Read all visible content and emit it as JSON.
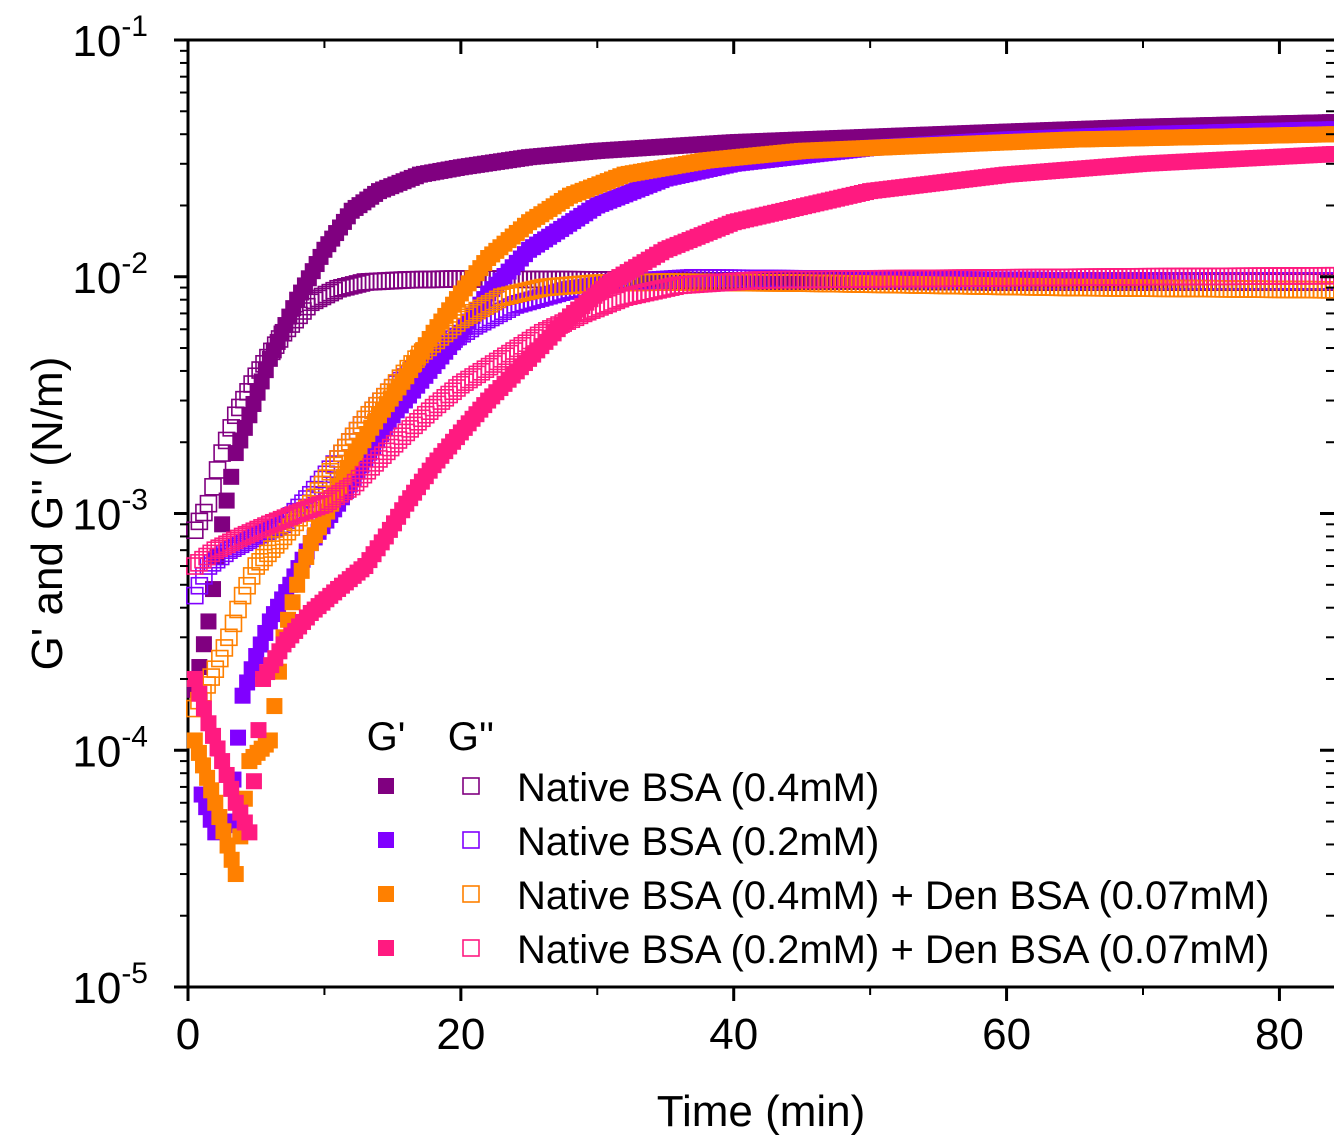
{
  "chart_data": {
    "type": "scatter",
    "title": "",
    "xlabel": "Time (min)",
    "ylabel": "G' and G'' (N/m)",
    "xlim": [
      0,
      84
    ],
    "ylim": [
      1e-05,
      0.1
    ],
    "yscale": "log",
    "grid": false,
    "legend_position": "bottom-right",
    "legend_headers": [
      "G'",
      "G''"
    ],
    "x_ticks": [
      0,
      20,
      40,
      60,
      80
    ],
    "x_tick_labels": [
      "0",
      "20",
      "40",
      "60",
      "80"
    ],
    "y_ticks": [
      {
        "value": 1e-05,
        "base": "10",
        "exp": "-5"
      },
      {
        "value": 0.0001,
        "base": "10",
        "exp": "-4"
      },
      {
        "value": 0.001,
        "base": "10",
        "exp": "-3"
      },
      {
        "value": 0.01,
        "base": "10",
        "exp": "-2"
      },
      {
        "value": 0.1,
        "base": "10",
        "exp": "-1"
      }
    ],
    "series": [
      {
        "name": "Native BSA (0.4mM)",
        "color": "#800080",
        "gprime": [
          [
            0.5,
            0.00018
          ],
          [
            1.5,
            0.00035
          ],
          [
            2.5,
            0.0009
          ],
          [
            3.5,
            0.0018
          ],
          [
            4.5,
            0.0026
          ],
          [
            6,
            0.0045
          ],
          [
            8,
            0.008
          ],
          [
            10,
            0.013
          ],
          [
            12,
            0.019
          ],
          [
            14,
            0.023
          ],
          [
            17,
            0.027
          ],
          [
            20,
            0.029
          ],
          [
            25,
            0.032
          ],
          [
            30,
            0.034
          ],
          [
            40,
            0.037
          ],
          [
            50,
            0.039
          ],
          [
            60,
            0.041
          ],
          [
            70,
            0.043
          ],
          [
            84,
            0.045
          ]
        ],
        "gdoubleprime": [
          [
            0.5,
            0.00085
          ],
          [
            1.5,
            0.0011
          ],
          [
            2.5,
            0.0018
          ],
          [
            3.5,
            0.0026
          ],
          [
            5,
            0.0038
          ],
          [
            7,
            0.0058
          ],
          [
            9,
            0.0078
          ],
          [
            11,
            0.0089
          ],
          [
            13,
            0.0095
          ],
          [
            16,
            0.0097
          ],
          [
            20,
            0.0098
          ],
          [
            30,
            0.0097
          ],
          [
            40,
            0.0096
          ],
          [
            50,
            0.0096
          ],
          [
            60,
            0.0095
          ],
          [
            70,
            0.0095
          ],
          [
            84,
            0.0095
          ]
        ]
      },
      {
        "name": "Native BSA (0.2mM)",
        "color": "#8000FF",
        "gprime": [
          [
            1,
            6.5e-05
          ],
          [
            2,
            4.5e-05
          ],
          [
            3,
            5e-05
          ],
          [
            4,
            0.00017
          ],
          [
            5,
            0.00025
          ],
          [
            6,
            0.00035
          ],
          [
            7.5,
            0.0005
          ],
          [
            9,
            0.00075
          ],
          [
            11,
            0.0011
          ],
          [
            13,
            0.0017
          ],
          [
            15,
            0.0026
          ],
          [
            18,
            0.0042
          ],
          [
            20,
            0.0058
          ],
          [
            22,
            0.0085
          ],
          [
            25,
            0.013
          ],
          [
            30,
            0.02
          ],
          [
            35,
            0.026
          ],
          [
            40,
            0.03
          ],
          [
            50,
            0.035
          ],
          [
            60,
            0.038
          ],
          [
            70,
            0.04
          ],
          [
            84,
            0.042
          ]
        ],
        "gdoubleprime": [
          [
            0.5,
            0.00045
          ],
          [
            1.5,
            0.0006
          ],
          [
            3,
            0.0007
          ],
          [
            5,
            0.0008
          ],
          [
            7,
            0.0009
          ],
          [
            9,
            0.0012
          ],
          [
            11,
            0.0017
          ],
          [
            13,
            0.0025
          ],
          [
            15,
            0.0034
          ],
          [
            18,
            0.0048
          ],
          [
            21,
            0.0062
          ],
          [
            24,
            0.0076
          ],
          [
            28,
            0.0088
          ],
          [
            32,
            0.0095
          ],
          [
            37,
            0.0099
          ],
          [
            45,
            0.0098
          ],
          [
            55,
            0.0097
          ],
          [
            65,
            0.0096
          ],
          [
            75,
            0.0096
          ],
          [
            84,
            0.0096
          ]
        ]
      },
      {
        "name": "Native BSA (0.4mM) + Den BSA (0.07mM)",
        "color": "#FF8000",
        "gprime": [
          [
            0.5,
            0.00011
          ],
          [
            2,
            6e-05
          ],
          [
            3.5,
            3e-05
          ],
          [
            4.5,
            9e-05
          ],
          [
            6,
            0.00011
          ],
          [
            7,
            0.0003
          ],
          [
            8,
            0.0005
          ],
          [
            9,
            0.00075
          ],
          [
            10.5,
            0.0011
          ],
          [
            12,
            0.0017
          ],
          [
            14,
            0.0026
          ],
          [
            16,
            0.0038
          ],
          [
            18,
            0.0058
          ],
          [
            20,
            0.0085
          ],
          [
            22,
            0.012
          ],
          [
            25,
            0.017
          ],
          [
            28,
            0.022
          ],
          [
            32,
            0.027
          ],
          [
            38,
            0.031
          ],
          [
            45,
            0.034
          ],
          [
            55,
            0.036
          ],
          [
            65,
            0.038
          ],
          [
            75,
            0.039
          ],
          [
            84,
            0.04
          ]
        ],
        "gdoubleprime": [
          [
            0.5,
            0.00015
          ],
          [
            2,
            0.00022
          ],
          [
            3,
            0.0003
          ],
          [
            4,
            0.00045
          ],
          [
            5,
            0.0006
          ],
          [
            7,
            0.0008
          ],
          [
            9,
            0.0011
          ],
          [
            11,
            0.0017
          ],
          [
            13,
            0.0025
          ],
          [
            15,
            0.0034
          ],
          [
            17,
            0.0047
          ],
          [
            20,
            0.0066
          ],
          [
            23,
            0.0082
          ],
          [
            26,
            0.009
          ],
          [
            30,
            0.0094
          ],
          [
            35,
            0.0095
          ],
          [
            45,
            0.0094
          ],
          [
            55,
            0.0092
          ],
          [
            65,
            0.009
          ],
          [
            75,
            0.0089
          ],
          [
            84,
            0.0088
          ]
        ]
      },
      {
        "name": "Native BSA (0.2mM) + Den BSA (0.07mM)",
        "color": "#FF1A80",
        "gprime": [
          [
            0.5,
            0.0002
          ],
          [
            1.5,
            0.00013
          ],
          [
            2.5,
            9e-05
          ],
          [
            3.5,
            6e-05
          ],
          [
            4.5,
            4.5e-05
          ],
          [
            5.5,
            0.0002
          ],
          [
            7,
            0.00028
          ],
          [
            9,
            0.00038
          ],
          [
            11,
            0.00048
          ],
          [
            13,
            0.0006
          ],
          [
            14.5,
            0.0008
          ],
          [
            16,
            0.0011
          ],
          [
            18,
            0.0016
          ],
          [
            20,
            0.0022
          ],
          [
            22,
            0.003
          ],
          [
            25,
            0.0045
          ],
          [
            28,
            0.0068
          ],
          [
            31,
            0.0095
          ],
          [
            35,
            0.013
          ],
          [
            40,
            0.017
          ],
          [
            50,
            0.023
          ],
          [
            60,
            0.027
          ],
          [
            70,
            0.03
          ],
          [
            84,
            0.033
          ]
        ],
        "gdoubleprime": [
          [
            0.5,
            0.0006
          ],
          [
            2,
            0.0007
          ],
          [
            4,
            0.0008
          ],
          [
            6,
            0.0009
          ],
          [
            8,
            0.001
          ],
          [
            10,
            0.0011
          ],
          [
            12,
            0.0013
          ],
          [
            14,
            0.0017
          ],
          [
            16,
            0.0022
          ],
          [
            18,
            0.0028
          ],
          [
            20,
            0.0035
          ],
          [
            23,
            0.0045
          ],
          [
            26,
            0.0058
          ],
          [
            29,
            0.007
          ],
          [
            32,
            0.0082
          ],
          [
            36,
            0.0092
          ],
          [
            42,
            0.0097
          ],
          [
            50,
            0.0098
          ],
          [
            60,
            0.0099
          ],
          [
            70,
            0.01
          ],
          [
            84,
            0.0101
          ]
        ]
      }
    ]
  }
}
